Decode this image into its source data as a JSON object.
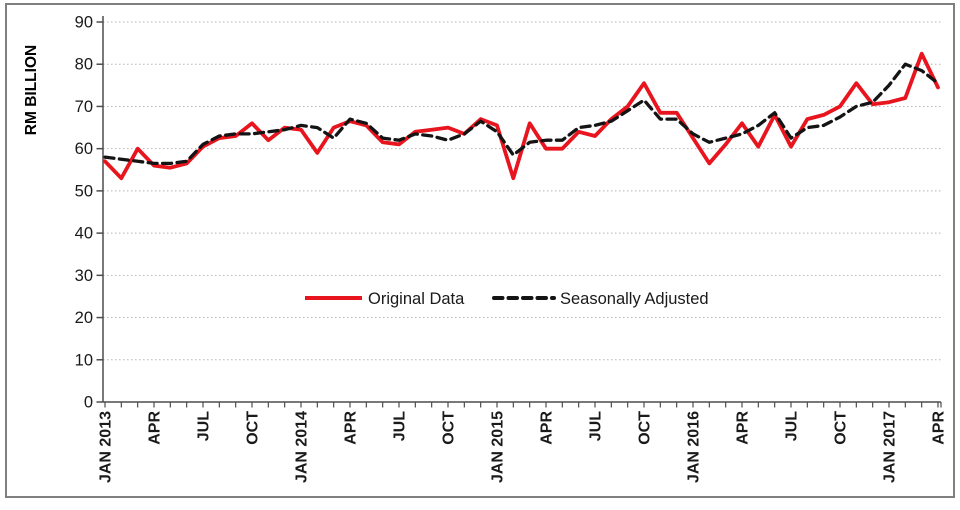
{
  "window": {
    "background": "#ffffff",
    "border_color": "#7f7f7f"
  },
  "chart_data": {
    "type": "line",
    "title": "",
    "ylabel": "RM BILLION",
    "xlabel": "",
    "ylim": [
      0,
      90
    ],
    "ytick_step": 10,
    "grid": "horizontal-dotted",
    "gridline_color": "#b3b3b3",
    "axis_color": "#4d4d4d",
    "categories": [
      "JAN 2013",
      "FEB 2013",
      "MAR 2013",
      "APR 2013",
      "MAY 2013",
      "JUN 2013",
      "JUL 2013",
      "AUG 2013",
      "SEP 2013",
      "OCT 2013",
      "NOV 2013",
      "DEC 2013",
      "JAN 2014",
      "FEB 2014",
      "MAR 2014",
      "APR 2014",
      "MAY 2014",
      "JUN 2014",
      "JUL 2014",
      "AUG 2014",
      "SEP 2014",
      "OCT 2014",
      "NOV 2014",
      "DEC 2014",
      "JAN 2015",
      "FEB 2015",
      "MAR 2015",
      "APR 2015",
      "MAY 2015",
      "JUN 2015",
      "JUL 2015",
      "AUG 2015",
      "SEP 2015",
      "OCT 2015",
      "NOV 2015",
      "DEC 2015",
      "JAN 2016",
      "FEB 2016",
      "MAR 2016",
      "APR 2016",
      "MAY 2016",
      "JUN 2016",
      "JUL 2016",
      "AUG 2016",
      "SEP 2016",
      "OCT 2016",
      "NOV 2016",
      "DEC 2016",
      "JAN 2017",
      "FEB 2017",
      "MAR 2017",
      "APR 2017"
    ],
    "x_ticks": [
      {
        "index": 0,
        "label": "JAN 2013"
      },
      {
        "index": 3,
        "label": "APR"
      },
      {
        "index": 6,
        "label": "JUL"
      },
      {
        "index": 9,
        "label": "OCT"
      },
      {
        "index": 12,
        "label": "JAN 2014"
      },
      {
        "index": 15,
        "label": "APR"
      },
      {
        "index": 18,
        "label": "JUL"
      },
      {
        "index": 21,
        "label": "OCT"
      },
      {
        "index": 24,
        "label": "JAN 2015"
      },
      {
        "index": 27,
        "label": "APR"
      },
      {
        "index": 30,
        "label": "JUL"
      },
      {
        "index": 33,
        "label": "OCT"
      },
      {
        "index": 36,
        "label": "JAN 2016"
      },
      {
        "index": 39,
        "label": "APR"
      },
      {
        "index": 42,
        "label": "JUL"
      },
      {
        "index": 45,
        "label": "OCT"
      },
      {
        "index": 48,
        "label": "JAN 2017"
      },
      {
        "index": 51,
        "label": "APR"
      }
    ],
    "series": [
      {
        "name": "Original Data",
        "color": "#e8141e",
        "style": "solid",
        "values": [
          57,
          53,
          60,
          56,
          55.5,
          56.5,
          60.5,
          62.5,
          63,
          66,
          62,
          65,
          64.5,
          59,
          65,
          66.5,
          65.5,
          61.5,
          61,
          64,
          64.5,
          65,
          63.5,
          67,
          65.5,
          53,
          66,
          60,
          60,
          64,
          63,
          67,
          70,
          75.5,
          68.5,
          68.5,
          62.5,
          56.5,
          61,
          66,
          60.5,
          68,
          60.5,
          67,
          68,
          70,
          75.5,
          70.5,
          71,
          72,
          82.5,
          74.5
        ]
      },
      {
        "name": "Seasonally Adjusted",
        "color": "#141414",
        "style": "dashed",
        "values": [
          58,
          57.5,
          57,
          56.5,
          56.5,
          57,
          61,
          63,
          63.5,
          63.5,
          64,
          64.5,
          65.5,
          65,
          62.5,
          67,
          66,
          62.5,
          62,
          63.5,
          63,
          62,
          63.5,
          66.5,
          64,
          58.5,
          61.5,
          62,
          62,
          65,
          65.5,
          66.5,
          69,
          71.5,
          67,
          67,
          63.5,
          61.5,
          62.5,
          63.5,
          65.5,
          68.5,
          62.5,
          65,
          65.5,
          67.5,
          70,
          71,
          75,
          80,
          78.5,
          75.5
        ]
      }
    ],
    "legend": {
      "position": "inside-center",
      "items": [
        "Original Data",
        "Seasonally Adjusted"
      ]
    }
  }
}
